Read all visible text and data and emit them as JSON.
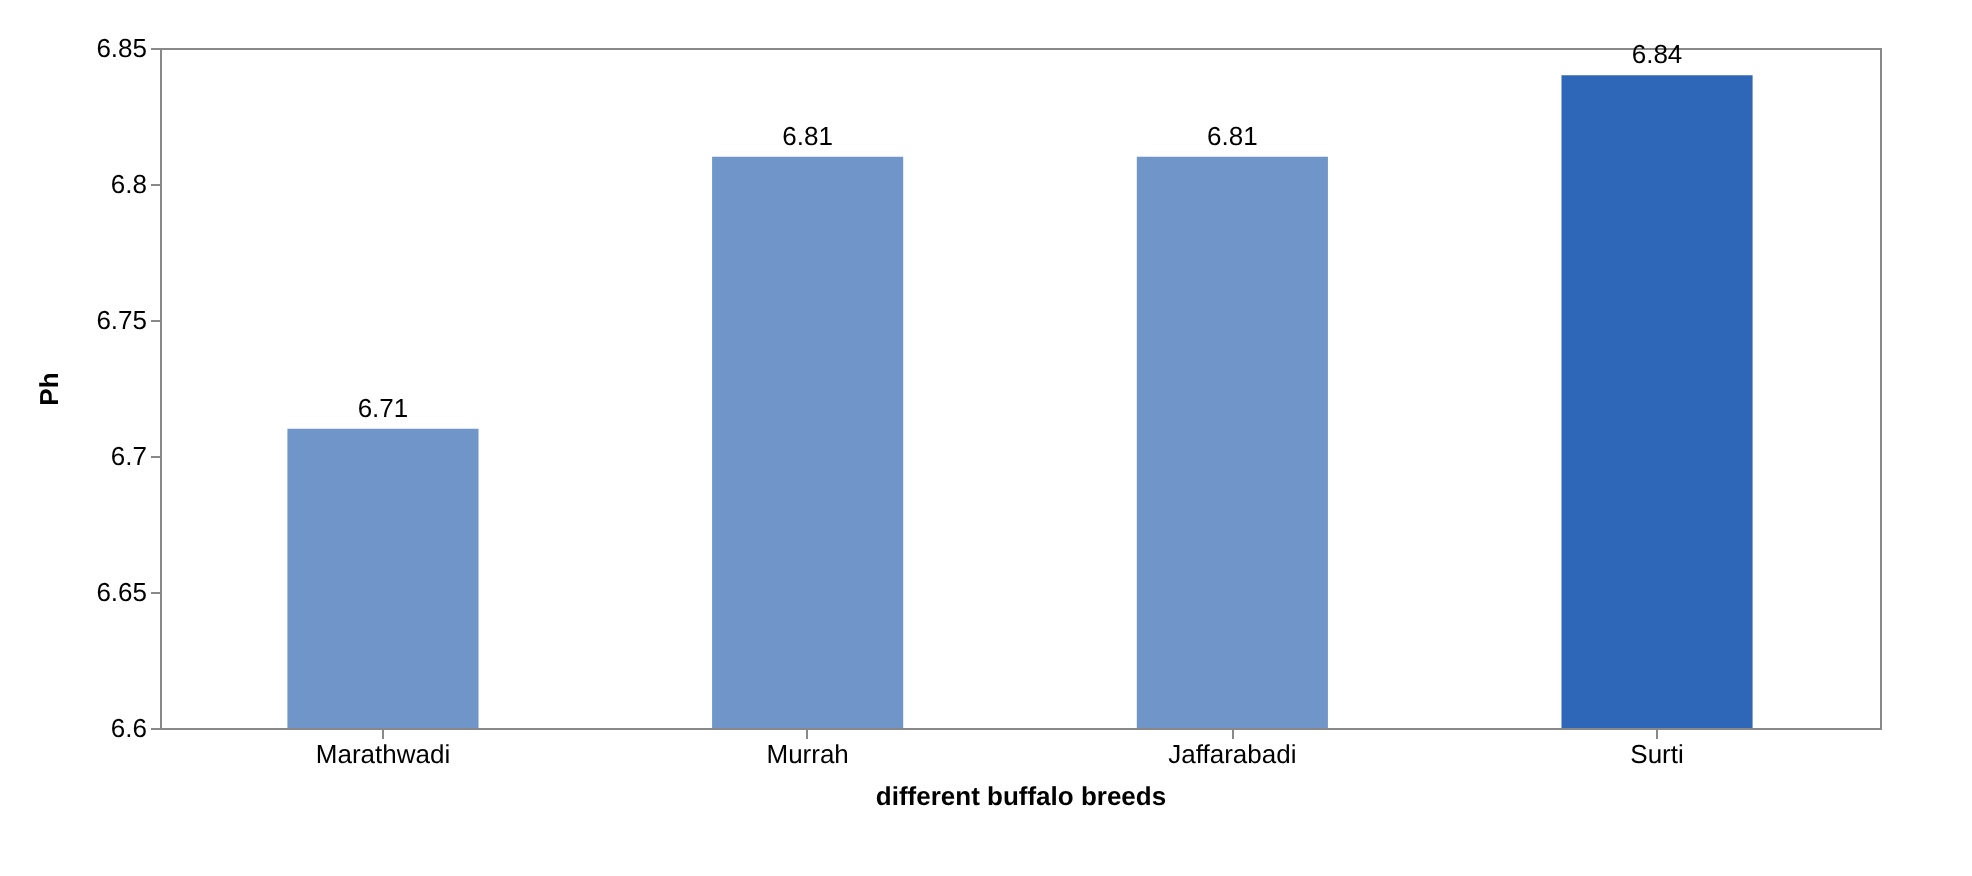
{
  "chart_data": {
    "type": "bar",
    "xlabel": "different  buffalo breeds",
    "ylabel": "Ph",
    "categories": [
      "Marathwadi",
      "Murrah",
      "Jaffarabadi",
      "Surti"
    ],
    "values": [
      6.71,
      6.81,
      6.81,
      6.84
    ],
    "colors": [
      "#6f95c9",
      "#6f95c9",
      "#6f95c9",
      "#2f67b8"
    ],
    "ylim": [
      6.6,
      6.85
    ],
    "yticks": [
      6.6,
      6.65,
      6.7,
      6.75,
      6.8,
      6.85
    ],
    "data_labels": true,
    "grid": false
  }
}
